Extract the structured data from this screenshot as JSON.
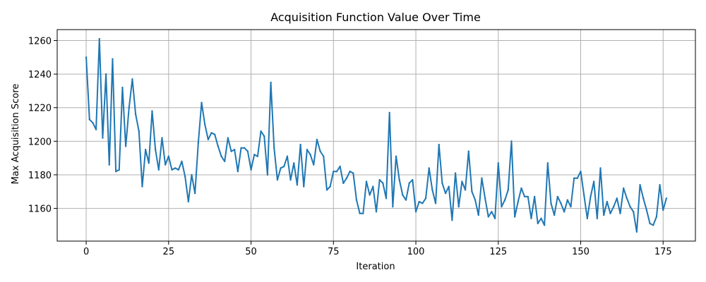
{
  "chart_data": {
    "type": "line",
    "title": "Acquisition Function Value Over Time",
    "xlabel": "Iteration",
    "ylabel": "Max Acquisition Score",
    "xlim": [
      -8.8,
      184.8
    ],
    "ylim": [
      1140.5,
      1266.5
    ],
    "xticks": [
      0,
      25,
      50,
      75,
      100,
      125,
      150,
      175
    ],
    "yticks": [
      1160,
      1180,
      1200,
      1220,
      1240,
      1260
    ],
    "grid": true,
    "series": [
      {
        "color": "#1f77b4",
        "x": [
          0,
          1,
          2,
          3,
          4,
          5,
          6,
          7,
          8,
          9,
          10,
          11,
          12,
          13,
          14,
          15,
          16,
          17,
          18,
          19,
          20,
          21,
          22,
          23,
          24,
          25,
          26,
          27,
          28,
          29,
          30,
          31,
          32,
          33,
          34,
          35,
          36,
          37,
          38,
          39,
          40,
          41,
          42,
          43,
          44,
          45,
          46,
          47,
          48,
          49,
          50,
          51,
          52,
          53,
          54,
          55,
          56,
          57,
          58,
          59,
          60,
          61,
          62,
          63,
          64,
          65,
          66,
          67,
          68,
          69,
          70,
          71,
          72,
          73,
          74,
          75,
          76,
          77,
          78,
          79,
          80,
          81,
          82,
          83,
          84,
          85,
          86,
          87,
          88,
          89,
          90,
          91,
          92,
          93,
          94,
          95,
          96,
          97,
          98,
          99,
          100,
          101,
          102,
          103,
          104,
          105,
          106,
          107,
          108,
          109,
          110,
          111,
          112,
          113,
          114,
          115,
          116,
          117,
          118,
          119,
          120,
          121,
          122,
          123,
          124,
          125,
          126,
          127,
          128,
          129,
          130,
          131,
          132,
          133,
          134,
          135,
          136,
          137,
          138,
          139,
          140,
          141,
          142,
          143,
          144,
          145,
          146,
          147,
          148,
          149,
          150,
          151,
          152,
          153,
          154,
          155,
          156,
          157,
          158,
          159,
          160,
          161,
          162,
          163,
          164,
          165,
          166,
          167,
          168,
          169,
          170,
          171,
          172,
          173,
          174,
          175,
          176
        ],
        "values": [
          1250,
          1213,
          1211,
          1207,
          1261,
          1202,
          1240,
          1186,
          1249,
          1182,
          1183,
          1232,
          1197,
          1220,
          1237,
          1216,
          1206,
          1173,
          1195,
          1187,
          1218,
          1195,
          1183,
          1202,
          1186,
          1191,
          1183,
          1184,
          1183,
          1188,
          1179,
          1164,
          1180,
          1169,
          1199,
          1223,
          1210,
          1201,
          1205,
          1204,
          1197,
          1191,
          1188,
          1202,
          1194,
          1195,
          1182,
          1196,
          1196,
          1194,
          1183,
          1192,
          1191,
          1206,
          1203,
          1180,
          1235,
          1196,
          1177,
          1184,
          1185,
          1191,
          1177,
          1187,
          1174,
          1198,
          1173,
          1195,
          1192,
          1186,
          1201,
          1194,
          1191,
          1171,
          1173,
          1182,
          1182,
          1185,
          1175,
          1178,
          1182,
          1181,
          1165,
          1157,
          1157,
          1176,
          1168,
          1173,
          1158,
          1177,
          1175,
          1166,
          1217,
          1161,
          1191,
          1177,
          1168,
          1165,
          1175,
          1177,
          1158,
          1164,
          1163,
          1166,
          1184,
          1171,
          1163,
          1198,
          1175,
          1169,
          1173,
          1153,
          1181,
          1161,
          1176,
          1171,
          1194,
          1170,
          1165,
          1156,
          1178,
          1166,
          1155,
          1158,
          1154,
          1187,
          1161,
          1165,
          1171,
          1200,
          1155,
          1164,
          1172,
          1167,
          1167,
          1154,
          1167,
          1151,
          1154,
          1150,
          1187,
          1163,
          1156,
          1167,
          1163,
          1158,
          1165,
          1161,
          1178,
          1178,
          1182,
          1168,
          1154,
          1167,
          1176,
          1154,
          1184,
          1156,
          1164,
          1157,
          1161,
          1166,
          1157,
          1172,
          1166,
          1161,
          1158,
          1146,
          1174,
          1166,
          1159,
          1151,
          1150,
          1155,
          1174,
          1159,
          1166
        ]
      }
    ]
  }
}
